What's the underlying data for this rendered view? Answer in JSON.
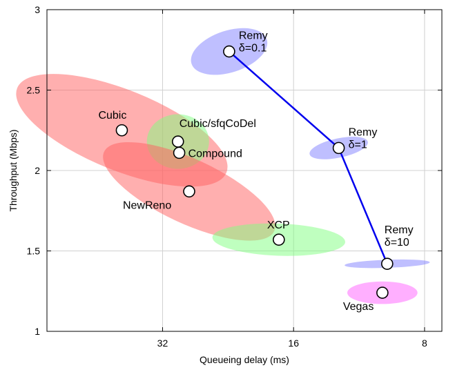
{
  "chart_data": {
    "type": "scatter",
    "title": "",
    "xlabel": "Queueing delay (ms)",
    "ylabel": "Throughput (Mbps)",
    "x_scale": "log2-reversed",
    "xlim": [
      59,
      7.3
    ],
    "ylim": [
      1,
      3
    ],
    "x_ticks": [
      32,
      16,
      8
    ],
    "y_ticks": [
      1,
      1.5,
      2,
      2.5,
      3
    ],
    "grid": true,
    "points": [
      {
        "label_lines": [
          "Remy",
          "δ=0.1"
        ],
        "x": 22.5,
        "y": 2.74,
        "color": "#8080ff",
        "ellipse": {
          "x_span_ratio": 1.52,
          "y_half": 0.13,
          "tilt_deg": -18
        }
      },
      {
        "label_lines": [
          "Remy",
          "δ=1"
        ],
        "x": 12.6,
        "y": 2.14,
        "color": "#8080ff",
        "ellipse": {
          "x_span_ratio": 1.37,
          "y_half": 0.06,
          "tilt_deg": -12
        }
      },
      {
        "label_lines": [
          "Remy",
          "δ=10"
        ],
        "x": 9.75,
        "y": 1.42,
        "color": "#8080ff",
        "ellipse": {
          "x_span_ratio": 1.57,
          "y_half": 0.025,
          "tilt_deg": -2
        }
      },
      {
        "label_lines": [
          "Cubic"
        ],
        "x": 39.7,
        "y": 2.25,
        "color": "#ff6060",
        "ellipse": {
          "x_span_ratio": 3.3,
          "y_half": 0.25,
          "tilt_deg": 22
        }
      },
      {
        "label_lines": [
          "Cubic/sfqCoDel"
        ],
        "x": 29.5,
        "y": 2.18,
        "color": "#80ff80",
        "ellipse": {
          "x_span_ratio": 1.39,
          "y_half": 0.17,
          "tilt_deg": 0
        }
      },
      {
        "label_lines": [
          "Compound"
        ],
        "x": 29.3,
        "y": 2.11,
        "color": "#ff6060",
        "ellipse": null
      },
      {
        "label_lines": [
          "NewReno"
        ],
        "x": 27.8,
        "y": 1.87,
        "color": "#ff6060",
        "ellipse": {
          "x_span_ratio": 2.7,
          "y_half": 0.2,
          "tilt_deg": 25
        }
      },
      {
        "label_lines": [
          "XCP"
        ],
        "x": 17.3,
        "y": 1.57,
        "color": "#80ff80",
        "ellipse": {
          "x_span_ratio": 2.02,
          "y_half": 0.1,
          "tilt_deg": 2
        }
      },
      {
        "label_lines": [
          "Vegas"
        ],
        "x": 10.0,
        "y": 1.24,
        "color": "#ff60ff",
        "ellipse": {
          "x_span_ratio": 1.45,
          "y_half": 0.07,
          "tilt_deg": 0
        }
      }
    ],
    "remy_line": {
      "color": "#0000ee",
      "x": [
        22.5,
        12.6,
        9.75
      ],
      "y": [
        2.74,
        2.14,
        1.42
      ]
    }
  }
}
